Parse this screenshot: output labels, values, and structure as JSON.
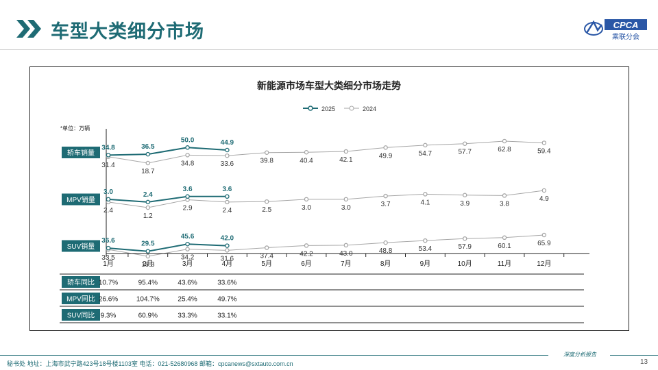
{
  "header": {
    "title": "车型大类细分市场",
    "logo_text": "CPCA",
    "logo_subtext": "乘联分会"
  },
  "chart_data": {
    "type": "line",
    "title": "新能源市场车型大类细分市场走势",
    "unit_note": "*单位：万辆",
    "categories": [
      "1月",
      "2月",
      "3月",
      "4月",
      "5月",
      "6月",
      "7月",
      "8月",
      "9月",
      "10月",
      "11月",
      "12月"
    ],
    "legend": [
      "2025",
      "2024"
    ],
    "legend_position": "top-center",
    "colors": {
      "2025": "#1e6b74",
      "2024": "#a6a6a6",
      "row_label_bg": "#1e6b74"
    },
    "panels": [
      {
        "label": "轿车销量",
        "series": [
          {
            "name": "2025",
            "values": [
              34.8,
              36.5,
              50.0,
              44.9
            ]
          },
          {
            "name": "2024",
            "values": [
              31.4,
              18.7,
              34.8,
              33.6,
              39.8,
              40.4,
              42.1,
              49.9,
              54.7,
              57.7,
              62.8,
              59.4
            ]
          }
        ]
      },
      {
        "label": "MPV销量",
        "series": [
          {
            "name": "2025",
            "values": [
              3.0,
              2.4,
              3.6,
              3.6
            ]
          },
          {
            "name": "2024",
            "values": [
              2.4,
              1.2,
              2.9,
              2.4,
              2.5,
              3.0,
              3.0,
              3.7,
              4.1,
              3.9,
              3.8,
              4.9
            ]
          }
        ]
      },
      {
        "label": "SUV销量",
        "series": [
          {
            "name": "2025",
            "values": [
              36.6,
              29.5,
              45.6,
              42.0
            ]
          },
          {
            "name": "2024",
            "values": [
              33.5,
              18.3,
              34.2,
              31.6,
              37.4,
              42.2,
              43.0,
              48.8,
              53.4,
              57.9,
              60.1,
              65.9
            ]
          }
        ]
      }
    ],
    "table": [
      {
        "label": "轿车同比",
        "values": [
          "10.7%",
          "95.4%",
          "43.6%",
          "33.6%"
        ]
      },
      {
        "label": "MPV同比",
        "values": [
          "26.6%",
          "104.7%",
          "25.4%",
          "49.7%"
        ]
      },
      {
        "label": "SUV同比",
        "values": [
          "9.3%",
          "60.9%",
          "33.3%",
          "33.1%"
        ]
      }
    ]
  },
  "footer": {
    "address": "秘书处  地址：上海市武宁路423号18号楼1103室  电话：021-52680968  邮箱：cpcanews@sxtauto.com.cn",
    "slogan": "深度分析报告",
    "page_number": "13"
  }
}
